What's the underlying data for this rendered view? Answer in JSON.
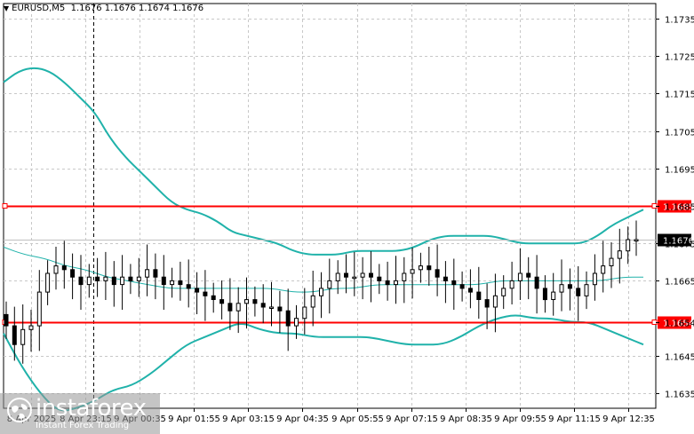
{
  "header": {
    "symbol": "EURUSD,M5",
    "ohlc": "1.1676 1.1676 1.1674 1.1676"
  },
  "price_labels": {
    "resistance": "1.1685",
    "current": "1.1676",
    "support": "1.1654"
  },
  "logo": {
    "brand": "instaforex",
    "tagline": "Instant Forex Trading"
  },
  "colors": {
    "band": "#20b2aa",
    "level": "#ff0000",
    "candle": "#000000",
    "grid": "#c8c8c8",
    "background": "#ffffff"
  },
  "chart_data": {
    "type": "candlestick",
    "symbol": "EURUSD,M5",
    "ylim": [
      1.1631,
      1.1739
    ],
    "y_ticks": [
      "1.1735",
      "1.1725",
      "1.1715",
      "1.1705",
      "1.1695",
      "1.1685",
      "1.1675",
      "1.1665",
      "1.1654",
      "1.1645",
      "1.1635"
    ],
    "x_ticks": [
      "8 Apr 2025",
      "8 Apr 23:15",
      "9 Apr 00:35",
      "9 Apr 01:55",
      "9 Apr 03:15",
      "9 Apr 04:35",
      "9 Apr 05:55",
      "9 Apr 07:15",
      "9 Apr 08:35",
      "9 Apr 09:55",
      "9 Apr 11:15",
      "9 Apr 12:35"
    ],
    "horizontal_levels": [
      {
        "price": 1.1685,
        "label": "1.1685",
        "color": "#ff0000"
      },
      {
        "price": 1.1654,
        "label": "1.1654",
        "color": "#ff0000"
      }
    ],
    "current_price": 1.1676,
    "vertical_marker_x_label": "9 Apr 00:35",
    "close_series": [
      1.1653,
      1.1648,
      1.1652,
      1.1653,
      1.1662,
      1.1667,
      1.1669,
      1.1668,
      1.1666,
      1.1664,
      1.1666,
      1.1665,
      1.1666,
      1.1664,
      1.1666,
      1.1665,
      1.1666,
      1.1668,
      1.1666,
      1.1664,
      1.1665,
      1.1664,
      1.1663,
      1.1662,
      1.1661,
      1.166,
      1.1659,
      1.1657,
      1.1659,
      1.166,
      1.1659,
      1.1658,
      1.1658,
      1.1657,
      1.1653,
      1.1655,
      1.1658,
      1.1661,
      1.1663,
      1.1665,
      1.1667,
      1.1666,
      1.1666,
      1.1667,
      1.1666,
      1.1665,
      1.1664,
      1.1665,
      1.1667,
      1.1668,
      1.1669,
      1.1668,
      1.1666,
      1.1665,
      1.1664,
      1.1663,
      1.1662,
      1.166,
      1.1658,
      1.1661,
      1.1663,
      1.1665,
      1.1667,
      1.1666,
      1.1663,
      1.166,
      1.1662,
      1.1664,
      1.1663,
      1.1661,
      1.1664,
      1.1667,
      1.1669,
      1.1671,
      1.1673,
      1.1676,
      1.1676
    ],
    "upper_band": [
      1.1718,
      1.1721,
      1.1722,
      1.1721,
      1.1718,
      1.1714,
      1.171,
      1.1703,
      1.1698,
      1.1694,
      1.169,
      1.1686,
      1.1684,
      1.1683,
      1.1681,
      1.1678,
      1.1677,
      1.1676,
      1.1675,
      1.1673,
      1.1672,
      1.1672,
      1.1672,
      1.1673,
      1.1673,
      1.1673,
      1.1673,
      1.1674,
      1.1676,
      1.1677,
      1.1677,
      1.1677,
      1.1677,
      1.1676,
      1.1675,
      1.1675,
      1.1675,
      1.1675,
      1.1675,
      1.1677,
      1.168,
      1.1682,
      1.1684
    ],
    "middle_band": [
      1.1674,
      1.1672,
      1.1671,
      1.1669,
      1.1668,
      1.1666,
      1.1665,
      1.1664,
      1.1663,
      1.1663,
      1.1663,
      1.1663,
      1.1663,
      1.1663,
      1.1662,
      1.1662,
      1.1663,
      1.1663,
      1.1664,
      1.1664,
      1.1664,
      1.1664,
      1.1664,
      1.1664,
      1.1665,
      1.1665,
      1.1665,
      1.1665,
      1.1665,
      1.1665,
      1.1666,
      1.1666
    ],
    "lower_band": [
      1.1651,
      1.1642,
      1.1635,
      1.163,
      1.1631,
      1.1633,
      1.1636,
      1.1637,
      1.164,
      1.1644,
      1.1648,
      1.165,
      1.1652,
      1.1654,
      1.1652,
      1.1651,
      1.1651,
      1.165,
      1.165,
      1.165,
      1.165,
      1.1649,
      1.1648,
      1.1648,
      1.1648,
      1.165,
      1.1653,
      1.1655,
      1.1656,
      1.1655,
      1.1655,
      1.1654,
      1.1654,
      1.1652,
      1.165,
      1.1648
    ]
  }
}
